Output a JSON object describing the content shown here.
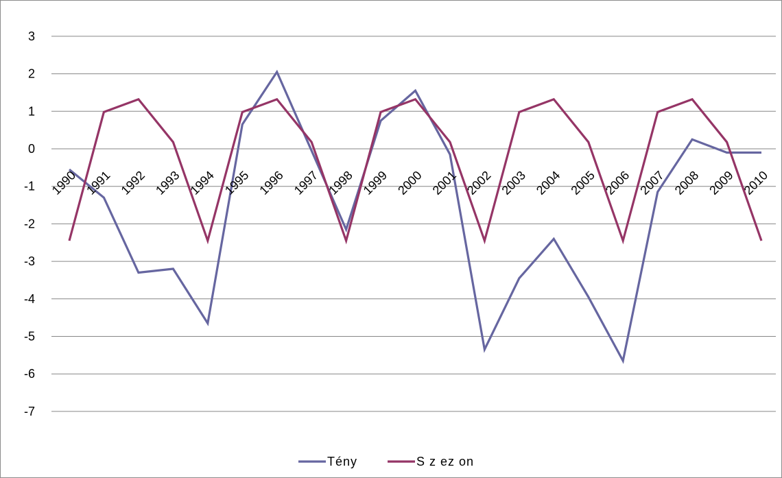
{
  "chart_data": {
    "type": "line",
    "categories": [
      "1990",
      "1991",
      "1992",
      "1993",
      "1994",
      "1995",
      "1996",
      "1997",
      "1998",
      "1999",
      "2000",
      "2001",
      "2002",
      "2003",
      "2004",
      "2005",
      "2006",
      "2007",
      "2008",
      "2009",
      "2010"
    ],
    "series": [
      {
        "name": "Tény",
        "color": "#6666a0",
        "values": [
          -0.55,
          -1.3,
          -3.3,
          -3.2,
          -4.65,
          0.65,
          2.05,
          -0.05,
          -2.15,
          0.75,
          1.55,
          -0.15,
          -5.35,
          -3.45,
          -2.4,
          -3.95,
          -5.65,
          -1.15,
          0.25,
          -0.1,
          -0.1
        ]
      },
      {
        "name": "S z ez on",
        "color": "#953566",
        "values": [
          -2.45,
          0.98,
          1.32,
          0.18,
          -2.45,
          0.98,
          1.32,
          0.18,
          -2.45,
          0.98,
          1.32,
          0.18,
          -2.45,
          0.98,
          1.32,
          0.18,
          -2.45,
          0.98,
          1.32,
          0.18,
          -2.45
        ]
      }
    ],
    "yticks": [
      3,
      2,
      1,
      0,
      -1,
      -2,
      -3,
      -4,
      -5,
      -6,
      -7
    ],
    "ylim": [
      -8,
      4
    ],
    "grid": true,
    "legend_position": "bottom",
    "title": "",
    "xlabel": "",
    "ylabel": ""
  }
}
